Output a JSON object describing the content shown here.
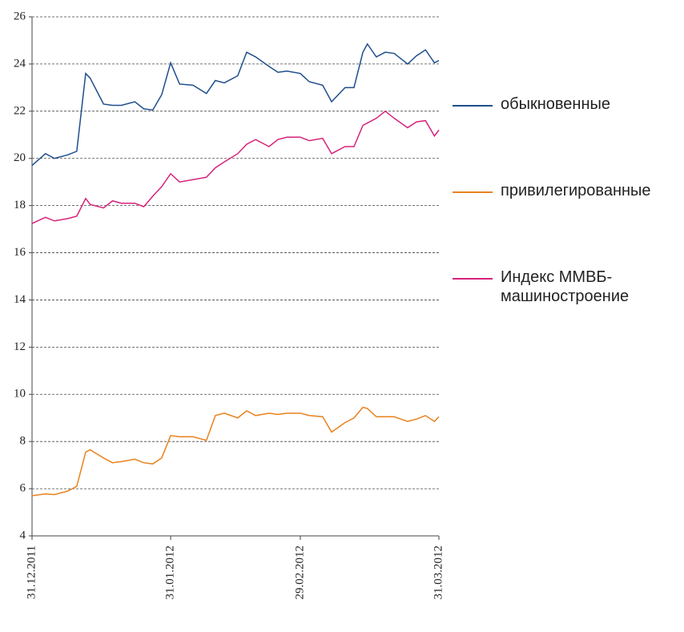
{
  "chart_data": {
    "type": "line",
    "x": [
      "31.12.2011",
      "03.01.2012",
      "05.01.2012",
      "08.01.2012",
      "10.01.2012",
      "12.01.2012",
      "13.01.2012",
      "16.01.2012",
      "18.01.2012",
      "20.01.2012",
      "23.01.2012",
      "25.01.2012",
      "27.01.2012",
      "29.01.2012",
      "31.01.2012",
      "02.02.2012",
      "05.02.2012",
      "08.02.2012",
      "10.02.2012",
      "12.02.2012",
      "15.02.2012",
      "17.02.2012",
      "19.02.2012",
      "22.02.2012",
      "24.02.2012",
      "26.02.2012",
      "29.02.2012",
      "02.03.2012",
      "05.03.2012",
      "07.03.2012",
      "10.03.2012",
      "12.03.2012",
      "14.03.2012",
      "15.03.2012",
      "17.03.2012",
      "19.03.2012",
      "21.03.2012",
      "24.03.2012",
      "26.03.2012",
      "28.03.2012",
      "30.03.2012",
      "31.03.2012"
    ],
    "series": [
      {
        "name": "обыкновенные",
        "color": "#1f4e8c",
        "values": [
          19.7,
          20.2,
          20.0,
          20.15,
          20.3,
          23.6,
          23.4,
          22.3,
          22.25,
          22.25,
          22.4,
          22.1,
          22.05,
          22.7,
          24.05,
          23.15,
          23.1,
          22.75,
          23.3,
          23.2,
          23.5,
          24.5,
          24.3,
          23.9,
          23.65,
          23.7,
          23.6,
          23.25,
          23.1,
          22.4,
          23.0,
          23.0,
          24.5,
          24.85,
          24.3,
          24.5,
          24.45,
          24.0,
          24.35,
          24.6,
          24.05,
          24.15
        ]
      },
      {
        "name": "привилегированные",
        "color": "#e8821e",
        "values": [
          5.7,
          5.78,
          5.75,
          5.9,
          6.1,
          7.55,
          7.65,
          7.3,
          7.1,
          7.15,
          7.25,
          7.1,
          7.05,
          7.3,
          8.25,
          8.2,
          8.2,
          8.05,
          9.1,
          9.2,
          9.0,
          9.3,
          9.1,
          9.2,
          9.15,
          9.2,
          9.2,
          9.1,
          9.05,
          8.4,
          8.8,
          9.0,
          9.45,
          9.4,
          9.05,
          9.05,
          9.05,
          8.85,
          8.95,
          9.1,
          8.85,
          9.05
        ]
      },
      {
        "name": "Индекс ММВБ-машиностроение",
        "color": "#d6237a",
        "values": [
          17.24,
          17.5,
          17.35,
          17.45,
          17.55,
          18.3,
          18.05,
          17.9,
          18.2,
          18.1,
          18.1,
          17.95,
          18.4,
          18.8,
          19.35,
          19.0,
          19.1,
          19.2,
          19.6,
          19.85,
          20.2,
          20.6,
          20.8,
          20.5,
          20.8,
          20.9,
          20.9,
          20.75,
          20.85,
          20.2,
          20.5,
          20.5,
          21.4,
          21.5,
          21.7,
          22.0,
          21.7,
          21.3,
          21.55,
          21.6,
          20.95,
          21.2
        ]
      }
    ],
    "xlim": [
      "31.12.2011",
      "31.03.2012"
    ],
    "xticks": [
      "31.12.2011",
      "31.01.2012",
      "29.02.2012",
      "31.03.2012"
    ],
    "ylim": [
      4,
      26
    ],
    "yticks": [
      4,
      6,
      8,
      10,
      12,
      14,
      16,
      18,
      20,
      22,
      24,
      26
    ],
    "grid": true
  }
}
